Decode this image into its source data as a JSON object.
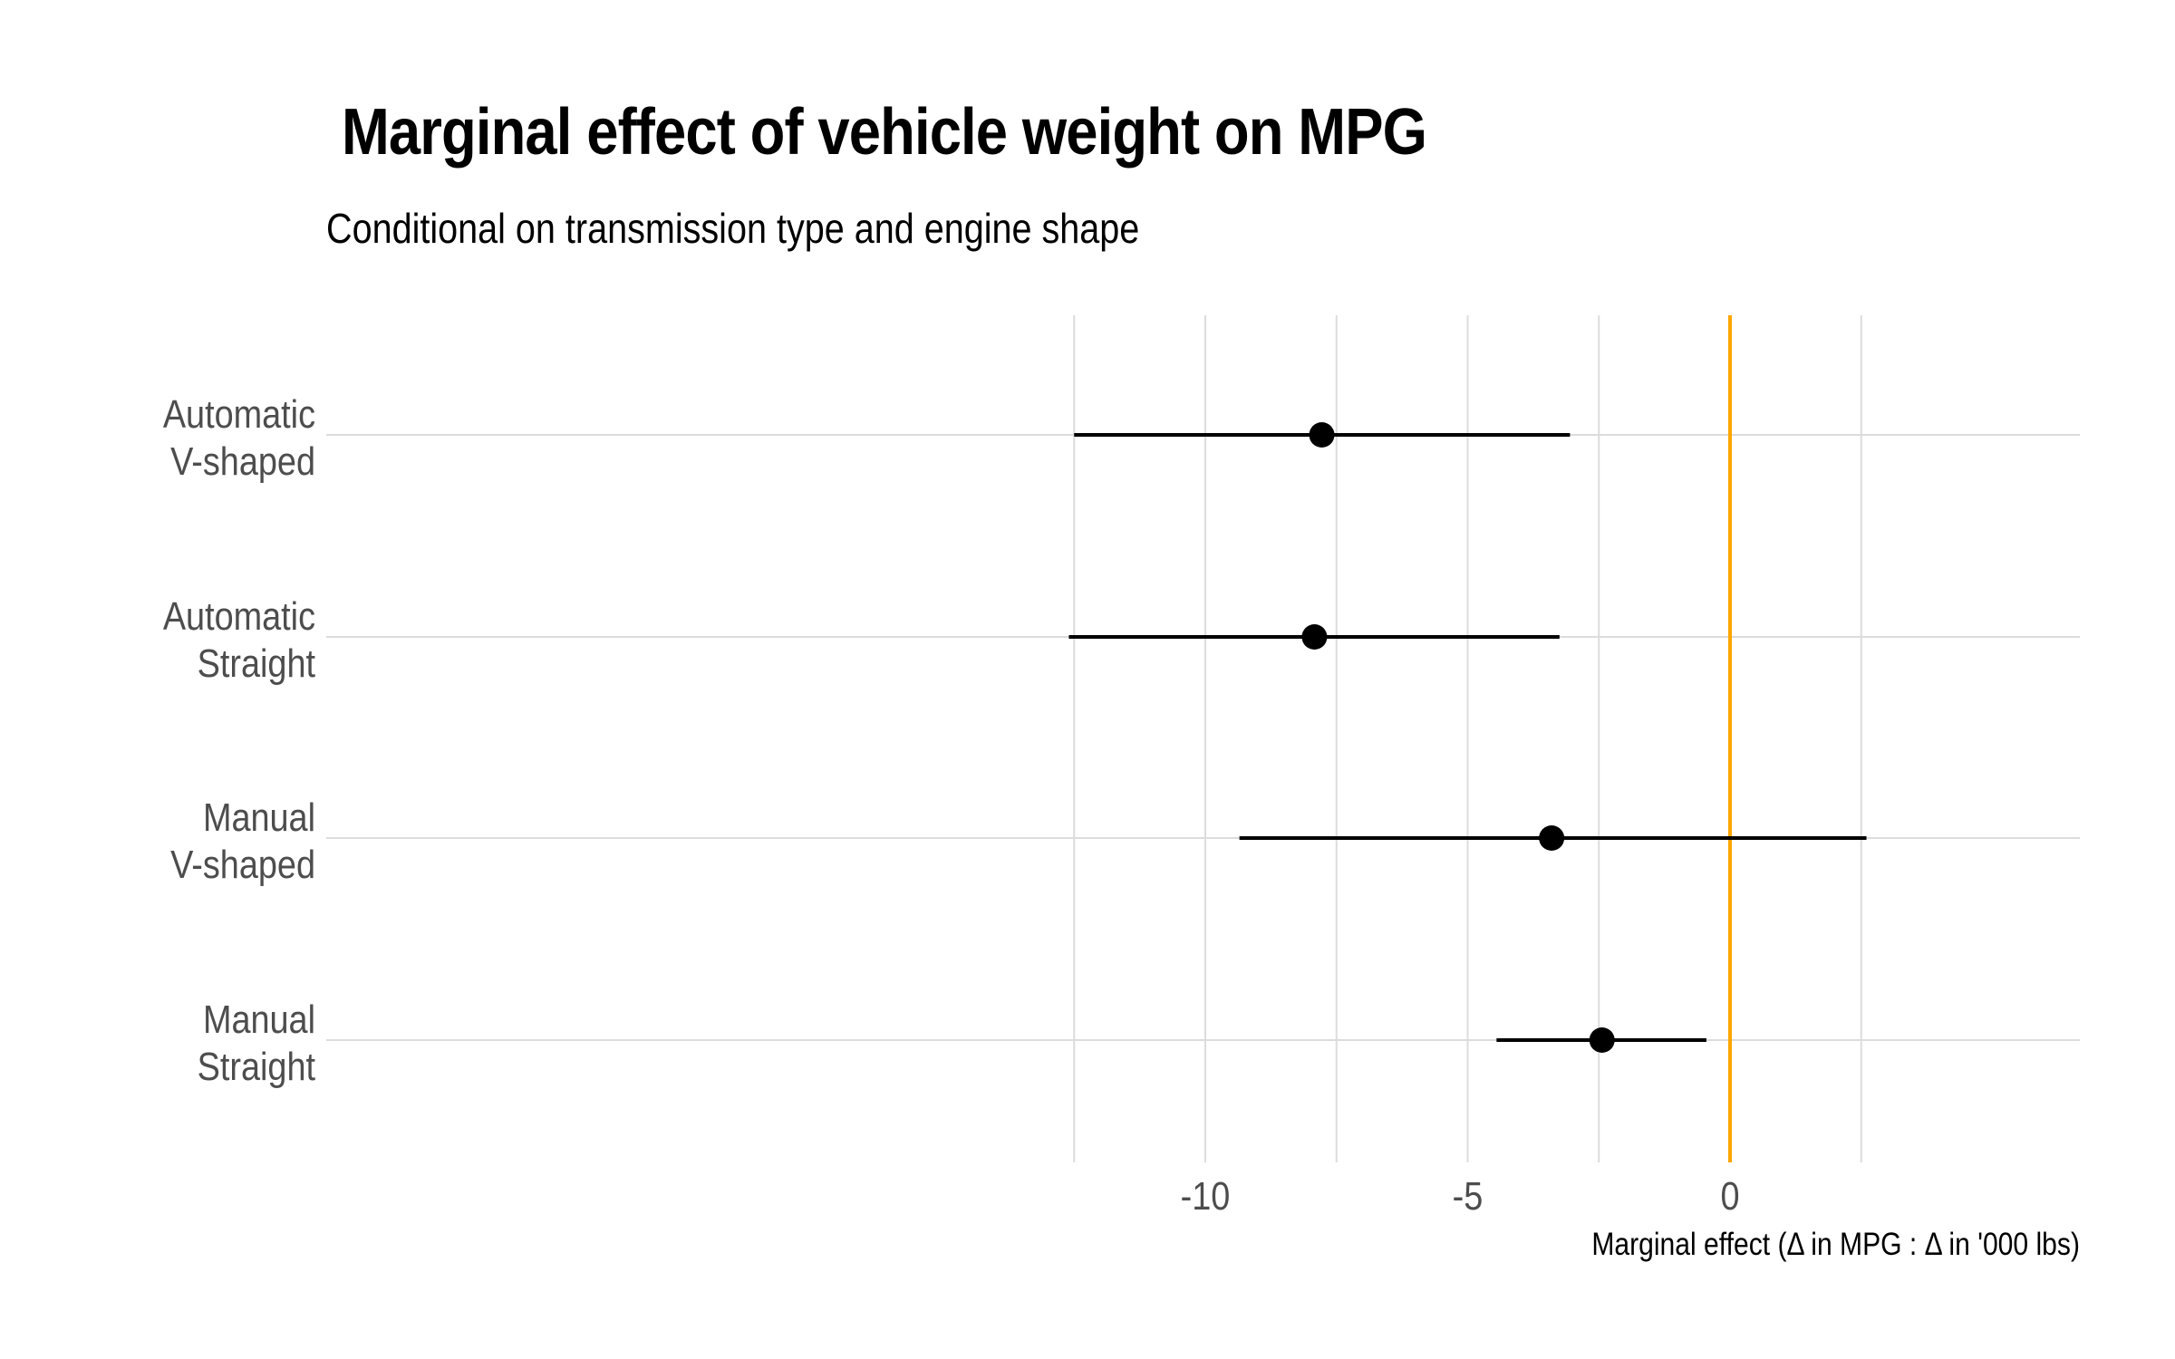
{
  "chart_data": {
    "type": "scatter",
    "title": "Marginal effect of vehicle weight on MPG",
    "subtitle": "Conditional on transmission type and engine shape",
    "xlabel": "Marginal effect (Δ in MPG : Δ in '000 lbs)",
    "ylabel": "",
    "xlim": [
      -12.5,
      3.3
    ],
    "x_ticks": [
      -10,
      -5,
      0
    ],
    "x_tick_labels": [
      "-10",
      "-5",
      "0"
    ],
    "reference_line": {
      "x": 0,
      "color": "#FFA500"
    },
    "grid": true,
    "categories": [
      [
        "Automatic",
        "V-shaped"
      ],
      [
        "Automatic",
        "Straight"
      ],
      [
        "Manual",
        "V-shaped"
      ],
      [
        "Manual",
        "Straight"
      ]
    ],
    "estimates": [
      -7.78,
      -7.92,
      -3.4,
      -2.44
    ],
    "ci_low": [
      -12.5,
      -12.6,
      -9.35,
      -4.45
    ],
    "ci_high": [
      -3.05,
      -3.25,
      2.6,
      -0.45
    ],
    "colors": {
      "point": "#000000",
      "range": "#000000",
      "grid": "#dcdcdc"
    }
  }
}
